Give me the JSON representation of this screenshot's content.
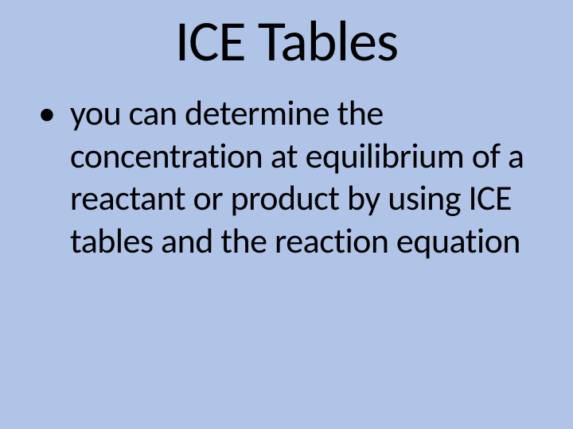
{
  "slide": {
    "background_color": "#b0c4e8",
    "title": {
      "text": "ICE Tables",
      "fontsize": 72,
      "font_weight": 400,
      "color": "#000000",
      "align": "center"
    },
    "bullets": [
      {
        "marker": "•",
        "text": " you can determine the concentration at equilibrium of a reactant or product by using ICE tables and the reaction equation"
      }
    ],
    "body_fontsize": 44,
    "body_color": "#000000",
    "font_family": "Calibri"
  }
}
